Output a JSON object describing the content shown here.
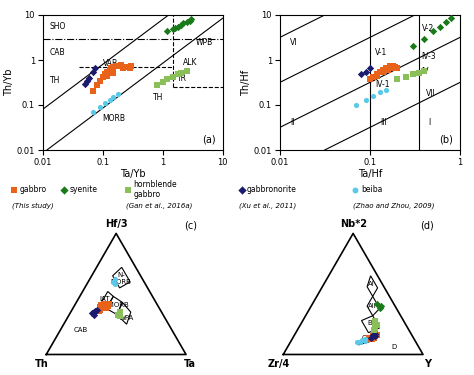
{
  "chart_data": [
    {
      "type": "scatter",
      "label": "(a)",
      "x_label": "Ta/Yb",
      "y_label": "Th/Yb",
      "log": true,
      "xlim": [
        0.01,
        10
      ],
      "ylim": [
        0.01,
        10
      ],
      "xticks": [
        0.01,
        0.1,
        1,
        10
      ],
      "yticks": [
        0.01,
        0.1,
        1,
        10
      ],
      "reference_lines": [
        {
          "x": [
            0.0117647059,
            10
          ],
          "y": [
            0.01,
            8.5
          ],
          "line_style": "solid"
        },
        {
          "x": [
            0.01,
            1.25
          ],
          "y": [
            0.08,
            10
          ],
          "line_style": "solid"
        },
        {
          "x": [
            0.01,
            10
          ],
          "y": [
            3.0,
            3.0
          ],
          "line_style": "dashdot"
        },
        {
          "x": [
            1.5,
            1.5
          ],
          "y": [
            0.25,
            10
          ],
          "line_style": "dashed"
        },
        {
          "x": [
            1.5,
            10
          ],
          "y": [
            0.25,
            0.25
          ],
          "line_style": "dashed"
        },
        {
          "x": [
            0.04,
            1.5
          ],
          "y": [
            0.7,
            0.7
          ],
          "line_style": "dashed"
        }
      ],
      "annotations": [
        {
          "text": "SHO",
          "x": 0.013,
          "y": 5.5
        },
        {
          "text": "CAB",
          "x": 0.013,
          "y": 1.5
        },
        {
          "text": "TH",
          "x": 0.013,
          "y": 0.35
        },
        {
          "text": "VAB",
          "x": 0.1,
          "y": 0.85
        },
        {
          "text": "MORB",
          "x": 0.1,
          "y": 0.05
        },
        {
          "text": "WPB",
          "x": 3.5,
          "y": 2.5
        },
        {
          "text": "ALK",
          "x": 2.2,
          "y": 0.9
        },
        {
          "text": "TR",
          "x": 1.7,
          "y": 0.38
        },
        {
          "text": "TH",
          "x": 0.7,
          "y": 0.15
        }
      ],
      "series": [
        {
          "name": "beiba",
          "color": "#5AC8E8",
          "marker": "circle",
          "x": [
            0.07,
            0.09,
            0.11,
            0.13,
            0.15,
            0.18
          ],
          "y": [
            0.07,
            0.09,
            0.11,
            0.13,
            0.15,
            0.18
          ]
        },
        {
          "name": "gabbro",
          "color": "#E8621A",
          "marker": "square",
          "x": [
            0.07,
            0.08,
            0.09,
            0.1,
            0.11,
            0.12,
            0.13,
            0.14,
            0.15,
            0.17,
            0.18,
            0.2,
            0.22,
            0.25,
            0.28,
            0.3,
            0.12,
            0.15
          ],
          "y": [
            0.2,
            0.28,
            0.35,
            0.42,
            0.5,
            0.55,
            0.6,
            0.65,
            0.7,
            0.72,
            0.75,
            0.78,
            0.65,
            0.7,
            0.68,
            0.72,
            0.45,
            0.52
          ]
        },
        {
          "name": "hornblende\ngabbro",
          "color": "#8ABF5A",
          "marker": "square",
          "x": [
            0.8,
            1.0,
            1.2,
            1.5,
            1.8,
            2.0,
            2.5
          ],
          "y": [
            0.28,
            0.32,
            0.38,
            0.42,
            0.48,
            0.52,
            0.58
          ]
        },
        {
          "name": "gabbronorite",
          "color": "#1A1A6E",
          "marker": "diamond",
          "x": [
            0.05,
            0.055,
            0.06,
            0.07,
            0.075
          ],
          "y": [
            0.3,
            0.35,
            0.4,
            0.55,
            0.65
          ]
        },
        {
          "name": "syenite",
          "color": "#1A7A1A",
          "marker": "diamond",
          "x": [
            1.5,
            1.8,
            2.0,
            2.2,
            2.5,
            2.8,
            3.0,
            1.2,
            1.6
          ],
          "y": [
            5.0,
            5.5,
            6.0,
            6.5,
            7.0,
            7.5,
            8.0,
            4.5,
            5.2
          ]
        }
      ]
    },
    {
      "type": "scatter",
      "label": "(b)",
      "x_label": "Ta/Hf",
      "y_label": "Th/Hf",
      "log": true,
      "xlim": [
        0.01,
        1.0
      ],
      "ylim": [
        0.01,
        10
      ],
      "xticks": [
        0.01,
        0.1,
        1
      ],
      "yticks": [
        0.01,
        0.1,
        1,
        10
      ],
      "reference_lines": [
        {
          "x": [
            0.0316227766,
            1
          ],
          "y": [
            0.01,
            0.316227766
          ],
          "line_style": "solid"
        },
        {
          "x": [
            0.01,
            1
          ],
          "y": [
            0.0316227766,
            3.16227766
          ],
          "line_style": "solid"
        },
        {
          "x": [
            0.01,
            0.316227766
          ],
          "y": [
            0.316227766,
            10
          ],
          "line_style": "solid"
        },
        {
          "x": [
            0.01,
            0.0316227766
          ],
          "y": [
            3.16227766,
            10
          ],
          "line_style": "solid"
        },
        {
          "x": [
            0.1,
            0.1
          ],
          "y": [
            0.01,
            10
          ],
          "line_style": "solid"
        },
        {
          "x": [
            0.35,
            0.35
          ],
          "y": [
            0.01,
            10
          ],
          "line_style": "solid"
        }
      ],
      "annotations": [
        {
          "text": "VI",
          "x": 0.013,
          "y": 2.5
        },
        {
          "text": "II",
          "x": 0.013,
          "y": 0.04
        },
        {
          "text": "III",
          "x": 0.13,
          "y": 0.04
        },
        {
          "text": "I",
          "x": 0.45,
          "y": 0.04
        },
        {
          "text": "V-2",
          "x": 0.38,
          "y": 5.0
        },
        {
          "text": "V-1",
          "x": 0.115,
          "y": 1.5
        },
        {
          "text": "IV-1",
          "x": 0.115,
          "y": 0.28
        },
        {
          "text": "IV",
          "x": 0.37,
          "y": 0.55
        },
        {
          "text": "IV-3",
          "x": 0.37,
          "y": 1.2
        },
        {
          "text": "VII",
          "x": 0.42,
          "y": 0.18
        }
      ],
      "series": [
        {
          "name": "beiba",
          "color": "#5AC8E8",
          "marker": "circle",
          "x": [
            0.07,
            0.09,
            0.11,
            0.13,
            0.15
          ],
          "y": [
            0.1,
            0.13,
            0.16,
            0.19,
            0.22
          ]
        },
        {
          "name": "gabbro",
          "color": "#E8621A",
          "marker": "square",
          "x": [
            0.1,
            0.11,
            0.12,
            0.13,
            0.14,
            0.15,
            0.16,
            0.17,
            0.18,
            0.19,
            0.2,
            0.12,
            0.14,
            0.16,
            0.18
          ],
          "y": [
            0.38,
            0.42,
            0.5,
            0.55,
            0.6,
            0.65,
            0.68,
            0.72,
            0.75,
            0.7,
            0.65,
            0.44,
            0.55,
            0.6,
            0.68
          ]
        },
        {
          "name": "hornblende\ngabbro",
          "color": "#8ABF5A",
          "marker": "square",
          "x": [
            0.2,
            0.25,
            0.3,
            0.35,
            0.4
          ],
          "y": [
            0.38,
            0.42,
            0.48,
            0.52,
            0.58
          ]
        },
        {
          "name": "gabbronorite",
          "color": "#1A1A6E",
          "marker": "diamond",
          "x": [
            0.08,
            0.09,
            0.1
          ],
          "y": [
            0.48,
            0.55,
            0.65
          ]
        },
        {
          "name": "syenite",
          "color": "#1A7A1A",
          "marker": "diamond",
          "x": [
            0.3,
            0.4,
            0.5,
            0.6,
            0.7,
            0.8
          ],
          "y": [
            2.0,
            3.0,
            4.5,
            5.5,
            7.0,
            8.5
          ]
        }
      ]
    },
    {
      "type": "ternary",
      "label": "(c)",
      "apex_labels": {
        "top": "Hf/3",
        "left": "Th",
        "right": "Ta"
      },
      "polygons": [
        [
          [
            0.72,
            0.1,
            0.18
          ],
          [
            0.6,
            0.1,
            0.3
          ],
          [
            0.55,
            0.2,
            0.25
          ],
          [
            0.65,
            0.2,
            0.15
          ]
        ],
        [
          [
            0.52,
            0.3,
            0.18
          ],
          [
            0.42,
            0.4,
            0.18
          ],
          [
            0.38,
            0.38,
            0.24
          ],
          [
            0.48,
            0.28,
            0.24
          ]
        ],
        [
          [
            0.48,
            0.28,
            0.24
          ],
          [
            0.38,
            0.38,
            0.24
          ],
          [
            0.33,
            0.33,
            0.34
          ],
          [
            0.43,
            0.24,
            0.33
          ]
        ],
        [
          [
            0.35,
            0.22,
            0.43
          ],
          [
            0.43,
            0.24,
            0.33
          ],
          [
            0.33,
            0.33,
            0.34
          ],
          [
            0.25,
            0.3,
            0.45
          ]
        ]
      ],
      "lines": [],
      "annotations": [
        {
          "text": "N-\nMORB",
          "at": [
            0.63,
            0.15,
            0.22
          ]
        },
        {
          "text": "IAT",
          "at": [
            0.46,
            0.35,
            0.19
          ]
        },
        {
          "text": "E-MORB",
          "at": [
            0.41,
            0.3,
            0.29
          ]
        },
        {
          "text": "WPA",
          "at": [
            0.3,
            0.28,
            0.42
          ]
        },
        {
          "text": "CAB",
          "at": [
            0.2,
            0.65,
            0.15
          ]
        }
      ],
      "series": [
        {
          "name": "gabbro",
          "color": "#E8621A",
          "marker": "square",
          "top": [
            0.42,
            0.4,
            0.38,
            0.39,
            0.41,
            0.4,
            0.42,
            0.38,
            0.37,
            0.36
          ],
          "left": [
            0.38,
            0.4,
            0.38,
            0.42,
            0.4,
            0.36,
            0.34,
            0.42,
            0.43,
            0.44
          ],
          "right": [
            0.2,
            0.2,
            0.24,
            0.19,
            0.19,
            0.24,
            0.24,
            0.2,
            0.2,
            0.2
          ]
        },
        {
          "name": "gabbronorite",
          "color": "#1A1A6E",
          "marker": "diamond",
          "top": [
            0.36,
            0.35,
            0.34,
            0.37,
            0.33
          ],
          "left": [
            0.47,
            0.48,
            0.5,
            0.45,
            0.49
          ],
          "right": [
            0.17,
            0.17,
            0.16,
            0.18,
            0.18
          ]
        },
        {
          "name": "hornblende\ngabbro",
          "color": "#8ABF5A",
          "marker": "square",
          "top": [
            0.35,
            0.33,
            0.32
          ],
          "left": [
            0.3,
            0.32,
            0.31
          ],
          "right": [
            0.35,
            0.35,
            0.37
          ]
        },
        {
          "name": "beiba",
          "color": "#5AC8E8",
          "marker": "circle",
          "top": [
            0.6,
            0.62,
            0.58
          ],
          "left": [
            0.22,
            0.2,
            0.22
          ],
          "right": [
            0.18,
            0.18,
            0.2
          ]
        }
      ]
    },
    {
      "type": "ternary",
      "label": "(d)",
      "apex_labels": {
        "top": "Nb*2",
        "left": "Zr/4",
        "right": "Y"
      },
      "polygons": [
        [
          [
            0.65,
            0.05,
            0.3
          ],
          [
            0.55,
            0.05,
            0.4
          ],
          [
            0.48,
            0.12,
            0.4
          ],
          [
            0.56,
            0.12,
            0.32
          ]
        ],
        [
          [
            0.48,
            0.12,
            0.4
          ],
          [
            0.38,
            0.12,
            0.5
          ],
          [
            0.32,
            0.2,
            0.48
          ],
          [
            0.4,
            0.2,
            0.4
          ]
        ],
        [
          [
            0.32,
            0.2,
            0.48
          ],
          [
            0.22,
            0.2,
            0.58
          ],
          [
            0.18,
            0.3,
            0.52
          ],
          [
            0.28,
            0.3,
            0.42
          ]
        ]
      ],
      "lines": [
        [
          [
            0.12,
            0.28,
            0.6
          ],
          [
            0.08,
            0.42,
            0.5
          ]
        ]
      ],
      "annotations": [
        {
          "text": "AI",
          "at": [
            0.58,
            0.08,
            0.34
          ]
        },
        {
          "text": "AII",
          "at": [
            0.4,
            0.16,
            0.44
          ]
        },
        {
          "text": "B",
          "at": [
            0.26,
            0.25,
            0.49
          ]
        },
        {
          "text": "C",
          "at": [
            0.14,
            0.35,
            0.51
          ]
        },
        {
          "text": "D",
          "at": [
            0.06,
            0.18,
            0.76
          ]
        }
      ],
      "series": [
        {
          "name": "gabbro",
          "color": "#E8621A",
          "marker": "square",
          "top": [
            0.14,
            0.13,
            0.15,
            0.16,
            0.14,
            0.13,
            0.15,
            0.16,
            0.14,
            0.17
          ],
          "left": [
            0.28,
            0.3,
            0.27,
            0.26,
            0.29,
            0.31,
            0.28,
            0.25,
            0.32,
            0.26
          ],
          "right": [
            0.58,
            0.57,
            0.58,
            0.58,
            0.57,
            0.56,
            0.57,
            0.59,
            0.54,
            0.57
          ]
        },
        {
          "name": "gabbronorite",
          "color": "#1A1A6E",
          "marker": "diamond",
          "top": [
            0.16,
            0.15,
            0.14,
            0.17
          ],
          "left": [
            0.28,
            0.27,
            0.3,
            0.26
          ],
          "right": [
            0.56,
            0.58,
            0.56,
            0.57
          ]
        },
        {
          "name": "hornblende\ngabbro",
          "color": "#8ABF5A",
          "marker": "square",
          "top": [
            0.2,
            0.22,
            0.24,
            0.25,
            0.28
          ],
          "left": [
            0.25,
            0.23,
            0.21,
            0.22,
            0.2
          ],
          "right": [
            0.55,
            0.55,
            0.55,
            0.53,
            0.52
          ]
        },
        {
          "name": "syenite",
          "color": "#1A7A1A",
          "marker": "diamond",
          "top": [
            0.38,
            0.4,
            0.42
          ],
          "left": [
            0.12,
            0.1,
            0.12
          ],
          "right": [
            0.5,
            0.5,
            0.46
          ]
        },
        {
          "name": "beiba",
          "color": "#5AC8E8",
          "marker": "circle",
          "top": [
            0.12,
            0.1,
            0.11,
            0.13,
            0.1
          ],
          "left": [
            0.38,
            0.4,
            0.36,
            0.35,
            0.42
          ],
          "right": [
            0.5,
            0.5,
            0.53,
            0.52,
            0.48
          ]
        }
      ]
    }
  ],
  "legend_groups": [
    {
      "source": "(This study)",
      "entries": [
        {
          "name": "gabbro",
          "color": "#E8621A",
          "marker": "square"
        },
        {
          "name": "syenite",
          "color": "#1A7A1A",
          "marker": "diamond"
        }
      ]
    },
    {
      "source": "(Gan et al., 2016a)",
      "entries": [
        {
          "name": "hornblende\ngabbro",
          "color": "#8ABF5A",
          "marker": "square"
        }
      ]
    },
    {
      "source": "(Xu et al., 2011)",
      "entries": [
        {
          "name": "gabbronorite",
          "color": "#1A1A6E",
          "marker": "diamond"
        }
      ]
    },
    {
      "source": "(Zhao and Zhou, 2009)",
      "entries": [
        {
          "name": "beiba",
          "color": "#5AC8E8",
          "marker": "circle"
        }
      ]
    }
  ]
}
